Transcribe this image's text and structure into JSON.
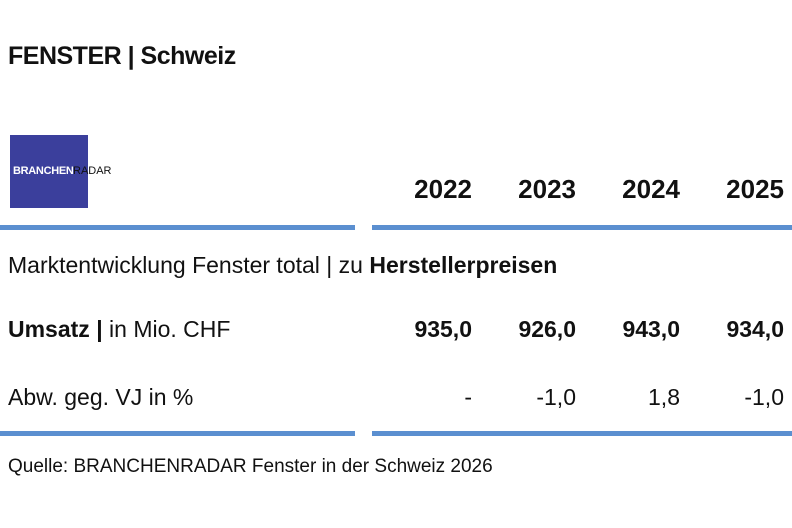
{
  "header": {
    "title": "FENSTER | Schweiz"
  },
  "logo": {
    "brand": "BRANCHEN",
    "suffix": "RADAR"
  },
  "table": {
    "columns": [
      "2022",
      "2023",
      "2024",
      "2025"
    ],
    "section": {
      "text": "Marktentwicklung Fenster total | zu ",
      "emphasis": "Herstellerpreisen"
    },
    "rows": [
      {
        "label": "Umsatz",
        "separator": "|",
        "unit": "in Mio. CHF",
        "values": [
          "935,0",
          "926,0",
          "943,0",
          "934,0"
        ]
      },
      {
        "label": "Abw. geg. VJ in %",
        "values": [
          "-",
          "-1,0",
          "1,8",
          "-1,0"
        ]
      }
    ]
  },
  "footer": {
    "source": "Quelle: BRANCHENRADAR Fenster in der Schweiz 2026"
  }
}
